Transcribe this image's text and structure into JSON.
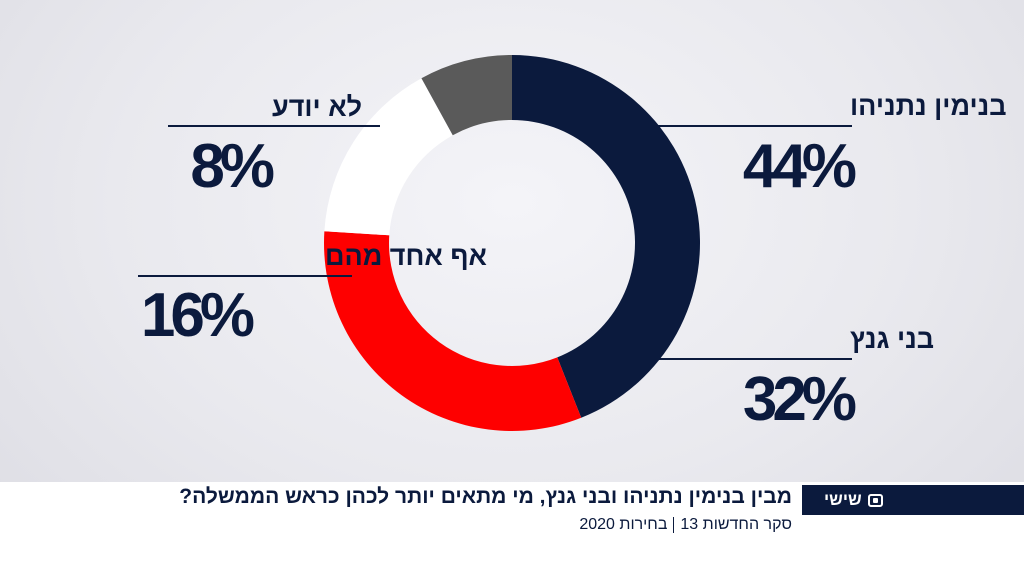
{
  "chart_data": {
    "type": "pie",
    "subtype": "donut",
    "slices": [
      {
        "label": "בנימין נתניהו",
        "value": 44,
        "display": "44%",
        "color": "#0b1a3d"
      },
      {
        "label": "בני גנץ",
        "value": 32,
        "display": "32%",
        "color": "#fe0000"
      },
      {
        "label": "אף אחד מהם",
        "value": 16,
        "display": "16%",
        "color": "#ffffff"
      },
      {
        "label": "לא יודע",
        "value": 8,
        "display": "8%",
        "color": "#5a5a5a"
      }
    ]
  },
  "banner": {
    "logo_label": "שישי",
    "question": "מבין בנימין נתניהו ובני גנץ, מי מתאים יותר לכהן כראש הממשלה?",
    "source": "סקר החדשות 13",
    "event": "בחירות 2020"
  }
}
